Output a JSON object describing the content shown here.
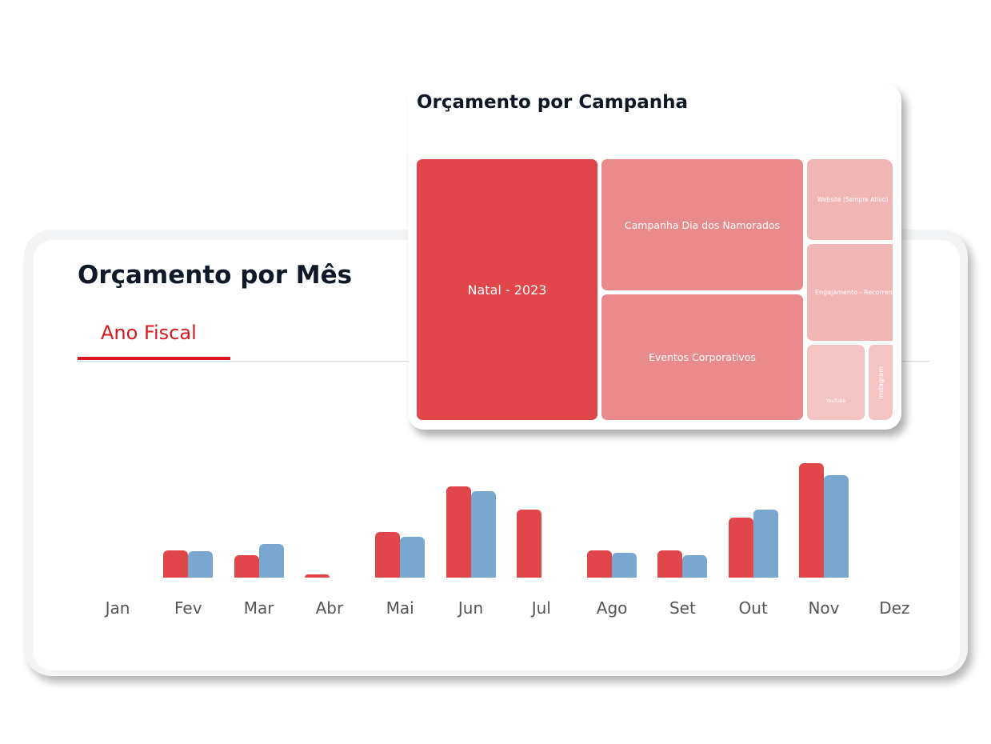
{
  "monthly": {
    "title": "Orçamento por Mês",
    "tab": "Ano Fiscal",
    "colors": {
      "series_a": "#e0464a",
      "series_b": "#7aa7d0",
      "accent": "#d7191f"
    },
    "chart_data": {
      "type": "bar",
      "categories": [
        "Jan",
        "Fev",
        "Mar",
        "Abr",
        "Mai",
        "Jun",
        "Jul",
        "Ago",
        "Set",
        "Out",
        "Nov",
        "Dez"
      ],
      "series": [
        {
          "values": [
            0,
            34,
            28,
            4,
            57,
            114,
            85,
            34,
            34,
            75,
            143,
            0
          ]
        },
        {
          "values": [
            0,
            33,
            42,
            0,
            51,
            108,
            0,
            31,
            28,
            85,
            128,
            0
          ]
        }
      ],
      "ylim": [
        0,
        150
      ],
      "grid": false
    }
  },
  "campaign": {
    "title": "Orçamento por Campanha",
    "cells": [
      {
        "label": "Natal - 2023",
        "color": "#e0464a"
      },
      {
        "label": "Campanha Dia dos Namorados",
        "color": "#e98a8b"
      },
      {
        "label": "Eventos Corporativos",
        "color": "#e98a8b"
      },
      {
        "label": "Website (Sempre Ativo)",
        "color": "#f2b5b6"
      },
      {
        "label": "Engajamento - Recorrente",
        "color": "#f2b5b6"
      },
      {
        "label": "YouTube",
        "color": "#f4c4c5"
      },
      {
        "label": "Instagram",
        "color": "#f4c4c5"
      }
    ]
  }
}
